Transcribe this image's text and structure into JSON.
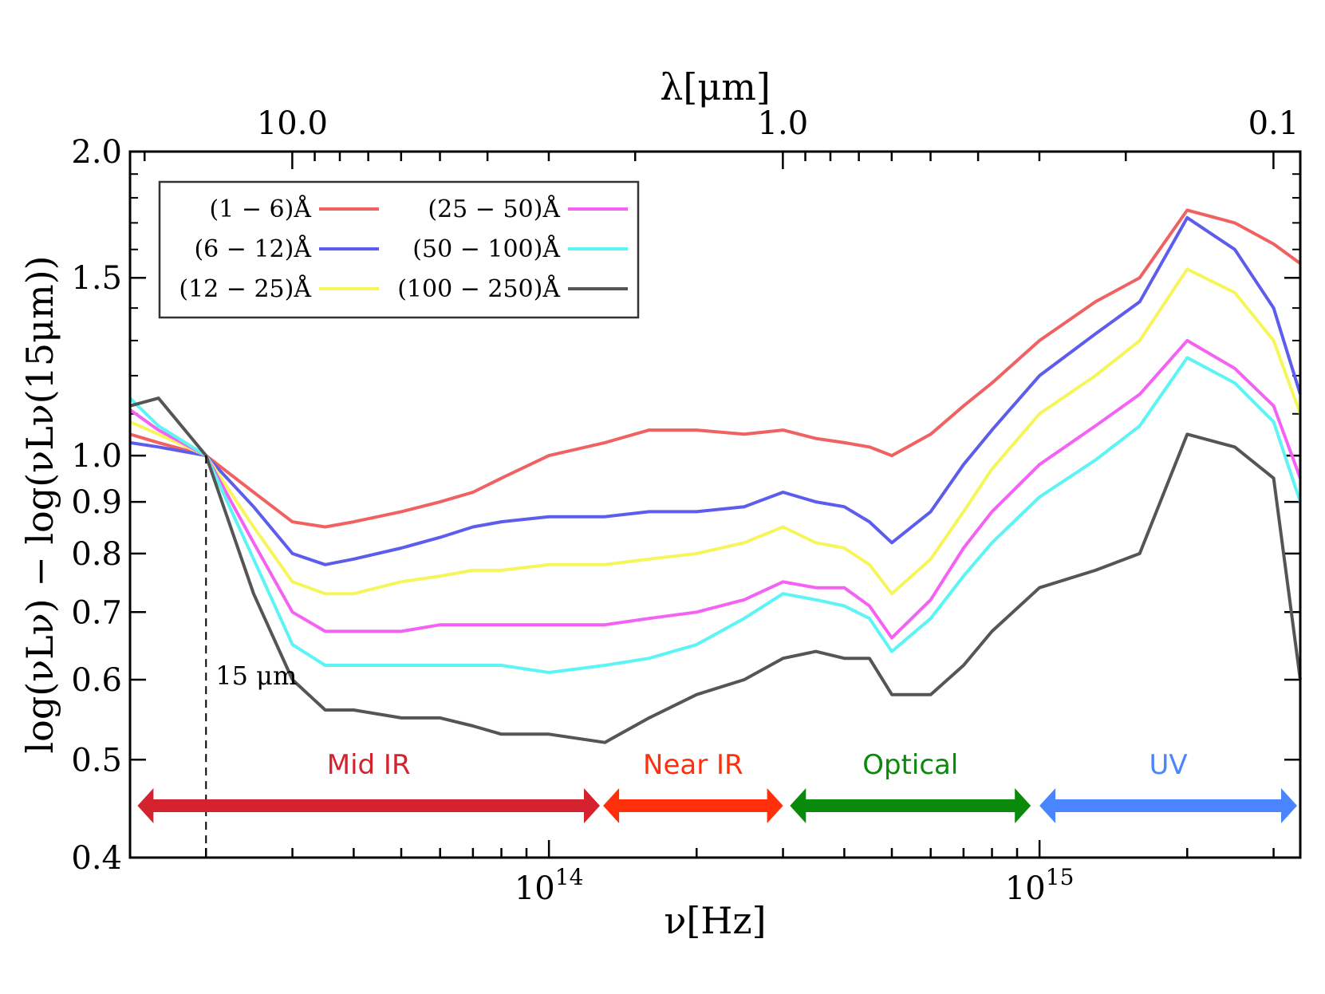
{
  "chart_data": {
    "type": "line",
    "xlabel": "ν[Hz]",
    "x2label": "λ[μm]",
    "ylabel": "log(νLν) − log(νLν(15μm))",
    "xscale": "log",
    "yscale": "log",
    "xlim": [
      14000000000000.0,
      3400000000000000.0
    ],
    "ylim": [
      0.4,
      2.0
    ],
    "x_ticks": [
      {
        "value": 100000000000000.0,
        "base": "10",
        "exp": "14"
      },
      {
        "value": 1000000000000000.0,
        "base": "10",
        "exp": "15"
      }
    ],
    "x2_ticks": [
      {
        "value_um": 10.0,
        "label": "10.0"
      },
      {
        "value_um": 1.0,
        "label": "1.0"
      },
      {
        "value_um": 0.1,
        "label": "0.1"
      }
    ],
    "y_ticks": [
      {
        "value": 0.4,
        "label": "0.4"
      },
      {
        "value": 0.5,
        "label": "0.5"
      },
      {
        "value": 0.6,
        "label": "0.6"
      },
      {
        "value": 0.7,
        "label": "0.7"
      },
      {
        "value": 0.8,
        "label": "0.8"
      },
      {
        "value": 0.9,
        "label": "0.9"
      },
      {
        "value": 1.0,
        "label": "1.0"
      },
      {
        "value": 1.5,
        "label": "1.5"
      },
      {
        "value": 2.0,
        "label": "2.0"
      }
    ],
    "x": [
      14000000000000.0,
      16000000000000.0,
      20000000000000.0,
      25000000000000.0,
      30000000000000.0,
      35000000000000.0,
      40000000000000.0,
      50000000000000.0,
      60000000000000.0,
      70000000000000.0,
      80000000000000.0,
      100000000000000.0,
      130000000000000.0,
      160000000000000.0,
      200000000000000.0,
      250000000000000.0,
      300000000000000.0,
      350000000000000.0,
      400000000000000.0,
      450000000000000.0,
      500000000000000.0,
      600000000000000.0,
      700000000000000.0,
      800000000000000.0,
      1000000000000000.0,
      1300000000000000.0,
      1600000000000000.0,
      2000000000000000.0,
      2500000000000000.0,
      3000000000000000.0,
      3400000000000000.0
    ],
    "series": [
      {
        "name": "(1 − 6)Å",
        "color": "#f06262",
        "values": [
          1.05,
          1.03,
          1.0,
          0.92,
          0.86,
          0.85,
          0.86,
          0.88,
          0.9,
          0.92,
          0.95,
          1.0,
          1.03,
          1.06,
          1.06,
          1.05,
          1.06,
          1.04,
          1.03,
          1.02,
          1.0,
          1.05,
          1.12,
          1.18,
          1.3,
          1.42,
          1.5,
          1.75,
          1.7,
          1.62,
          1.55
        ]
      },
      {
        "name": "(6 − 12)Å",
        "color": "#5c5ced",
        "values": [
          1.03,
          1.02,
          1.0,
          0.89,
          0.8,
          0.78,
          0.79,
          0.81,
          0.83,
          0.85,
          0.86,
          0.87,
          0.87,
          0.88,
          0.88,
          0.89,
          0.92,
          0.9,
          0.89,
          0.86,
          0.82,
          0.88,
          0.98,
          1.06,
          1.2,
          1.32,
          1.42,
          1.72,
          1.6,
          1.4,
          1.15
        ]
      },
      {
        "name": "(12 − 25)Å",
        "color": "#f6f65a",
        "values": [
          1.08,
          1.05,
          1.0,
          0.85,
          0.75,
          0.73,
          0.73,
          0.75,
          0.76,
          0.77,
          0.77,
          0.78,
          0.78,
          0.79,
          0.8,
          0.82,
          0.85,
          0.82,
          0.81,
          0.78,
          0.73,
          0.79,
          0.88,
          0.97,
          1.1,
          1.2,
          1.3,
          1.53,
          1.45,
          1.3,
          1.1
        ]
      },
      {
        "name": "(25 − 50)Å",
        "color": "#f462f4",
        "values": [
          1.11,
          1.06,
          1.0,
          0.82,
          0.7,
          0.67,
          0.67,
          0.67,
          0.68,
          0.68,
          0.68,
          0.68,
          0.68,
          0.69,
          0.7,
          0.72,
          0.75,
          0.74,
          0.74,
          0.71,
          0.66,
          0.72,
          0.81,
          0.88,
          0.98,
          1.07,
          1.15,
          1.3,
          1.22,
          1.12,
          0.95
        ]
      },
      {
        "name": "(50 − 100)Å",
        "color": "#5cf4f4",
        "values": [
          1.14,
          1.07,
          1.0,
          0.79,
          0.65,
          0.62,
          0.62,
          0.62,
          0.62,
          0.62,
          0.62,
          0.61,
          0.62,
          0.63,
          0.65,
          0.69,
          0.73,
          0.72,
          0.71,
          0.69,
          0.64,
          0.69,
          0.76,
          0.82,
          0.91,
          0.99,
          1.07,
          1.25,
          1.18,
          1.08,
          0.9
        ]
      },
      {
        "name": "(100 − 250)Å",
        "color": "#555555",
        "values": [
          1.12,
          1.14,
          1.0,
          0.73,
          0.6,
          0.56,
          0.56,
          0.55,
          0.55,
          0.54,
          0.53,
          0.53,
          0.52,
          0.55,
          0.58,
          0.6,
          0.63,
          0.64,
          0.63,
          0.63,
          0.58,
          0.58,
          0.62,
          0.67,
          0.74,
          0.77,
          0.8,
          1.05,
          1.02,
          0.95,
          0.6
        ]
      }
    ],
    "legend": {
      "placement": "top-left",
      "columns": 2
    },
    "annotations": [
      {
        "type": "vline",
        "x": 20000000000000.0,
        "style": "dashed",
        "label": "15 μm"
      }
    ],
    "bands": [
      {
        "label": "Mid IR",
        "from": 14500000000000.0,
        "to": 127000000000000.0,
        "color": "#d4222e",
        "label_color": "#d4222e"
      },
      {
        "label": "Near IR",
        "from": 129000000000000.0,
        "to": 300000000000000.0,
        "color": "#ff2f0c",
        "label_color": "#ff2f0c"
      },
      {
        "label": "Optical",
        "from": 310000000000000.0,
        "to": 960000000000000.0,
        "color": "#0a8a0a",
        "label_color": "#0a8a0a"
      },
      {
        "label": "UV",
        "from": 1000000000000000.0,
        "to": 3350000000000000.0,
        "color": "#4a85ff",
        "label_color": "#4a85ff"
      }
    ]
  }
}
